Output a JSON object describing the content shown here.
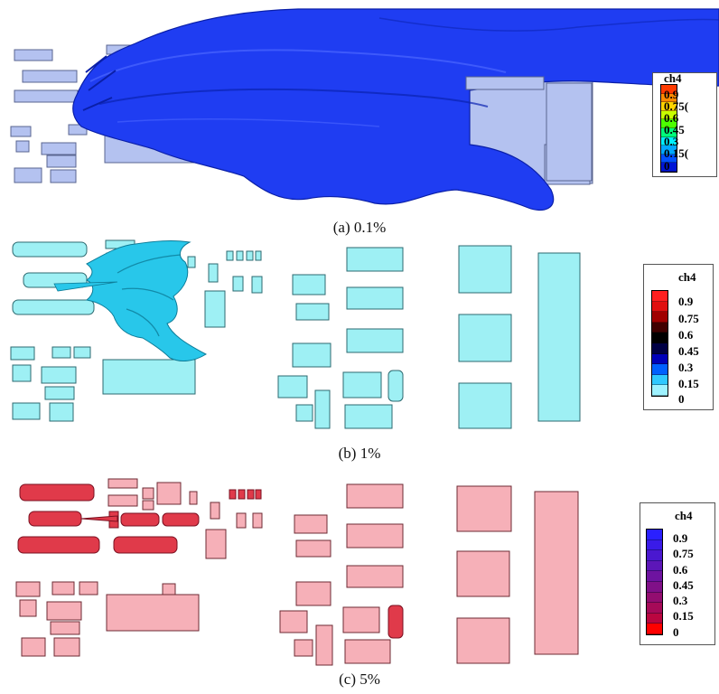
{
  "captions": {
    "a": "(a) 0.1%",
    "b": "(b) 1%",
    "c": "(c) 5%"
  },
  "legend_title": "ch4",
  "legend_labels": [
    "0.9",
    "0.75",
    "0.6",
    "0.45",
    "0.3",
    "0.15",
    "0"
  ],
  "panel_a": {
    "legend_labels_shown": [
      "0.9",
      "0.75(",
      "0.6",
      "0.45",
      "0.3",
      "0.15(",
      "0"
    ],
    "colormap": [
      "#ff3b00",
      "#ff8a00",
      "#ffd400",
      "#c8ff00",
      "#4cff00",
      "#00ff7a",
      "#00f0ff",
      "#00a8ff",
      "#0050ff",
      "#0015d6"
    ]
  },
  "panel_b": {
    "colormap": [
      "#ff2020",
      "#e01010",
      "#a00000",
      "#400000",
      "#000000",
      "#000044",
      "#0000b8",
      "#0060ff",
      "#30c8ff",
      "#9ef2ff"
    ]
  },
  "panel_c": {
    "colormap": [
      "#2a20ff",
      "#3a1be8",
      "#4a18d0",
      "#5c16b8",
      "#6e13a0",
      "#801088",
      "#930d70",
      "#a60a58",
      "#ba0640",
      "#ff0000"
    ]
  },
  "colors": {
    "building_a": "#b4c2f0",
    "plume_a": "#1f3df2",
    "building_b": "#9ef0f4",
    "plume_b": "#28c7ea",
    "building_c": "#f6b0b8",
    "plume_c": "#e03a4a"
  }
}
